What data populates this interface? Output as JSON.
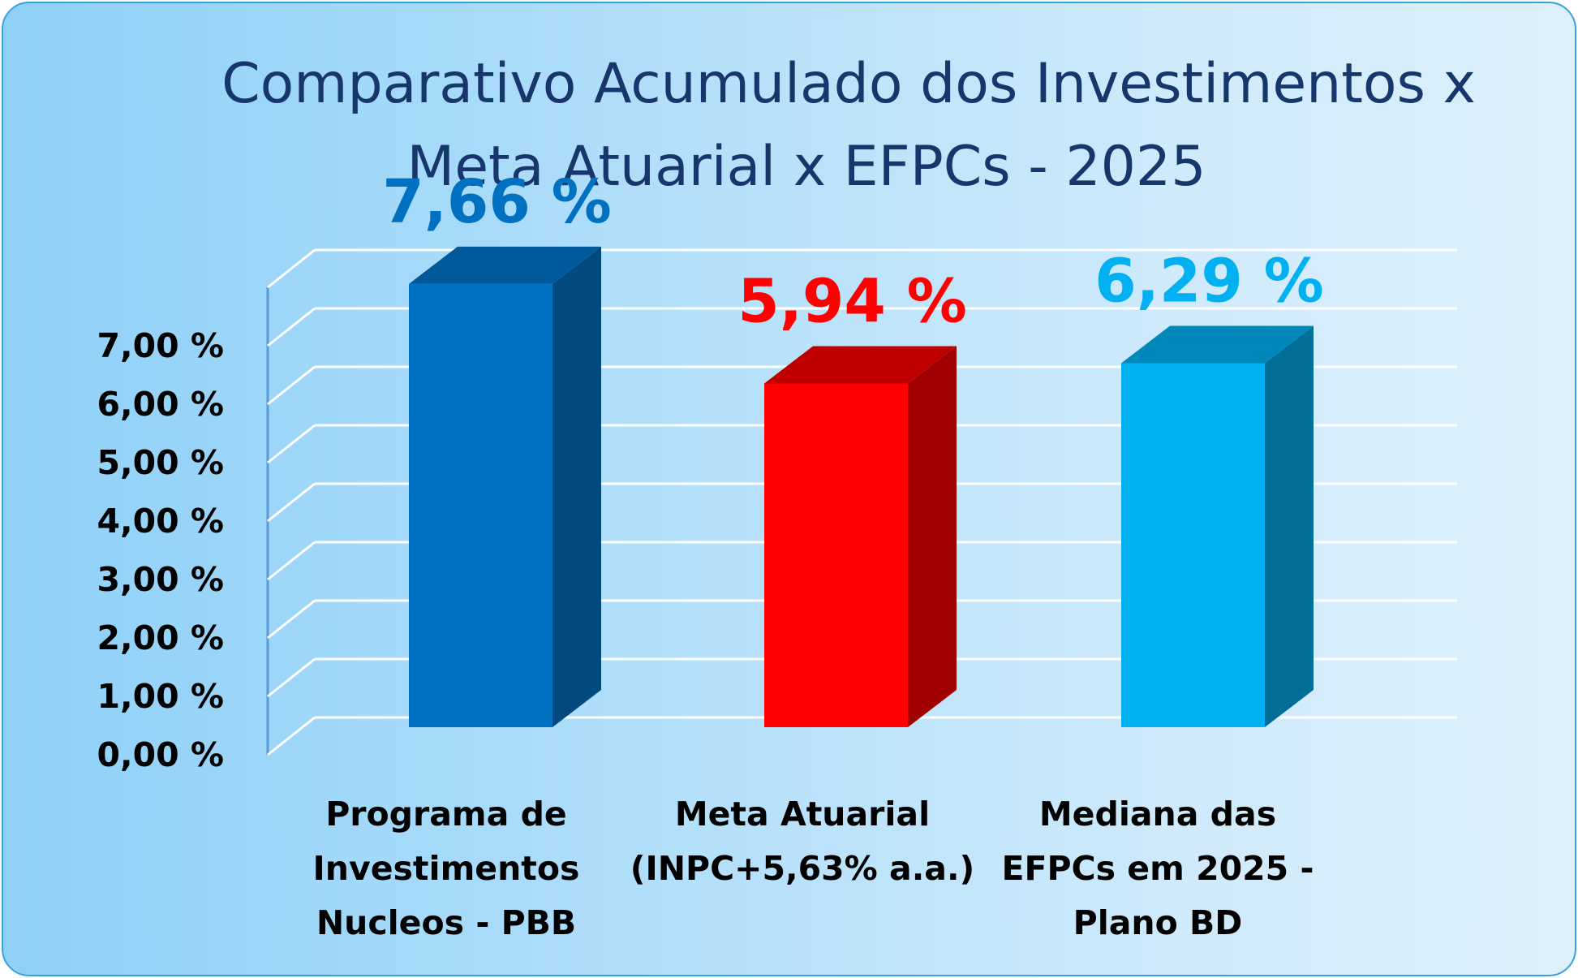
{
  "chart_data": {
    "type": "bar",
    "title_lines": [
      "Comparativo Acumulado dos Investimentos x",
      "Meta Atuarial x  EFPCs - 2025"
    ],
    "categories": [
      [
        "Programa de",
        "Investimentos",
        "Nucleos  - PBB"
      ],
      [
        "Meta Atuarial",
        "(INPC+5,63% a.a.)"
      ],
      [
        "Mediana das",
        "EFPCs em 2025 -",
        "Plano BD"
      ]
    ],
    "values": [
      7.66,
      5.94,
      6.29
    ],
    "data_labels": [
      "7,66 %",
      "5,94 %",
      "6,29 %"
    ],
    "colors": [
      {
        "front": "#0070c0",
        "side": "#004a80",
        "top": "#00599a",
        "label": "#0070c0"
      },
      {
        "front": "#ff0000",
        "side": "#a00000",
        "top": "#c00000",
        "label": "#ff0000"
      },
      {
        "front": "#00b0f0",
        "side": "#006e96",
        "top": "#0088ba",
        "label": "#00b0f0"
      }
    ],
    "y_ticks": [
      "0,00 %",
      "1,00 %",
      "2,00 %",
      "3,00 %",
      "4,00 %",
      "5,00 %",
      "6,00 %",
      "7,00 %"
    ],
    "ylim": [
      0,
      8
    ],
    "grid": true,
    "style": "3d-column"
  }
}
